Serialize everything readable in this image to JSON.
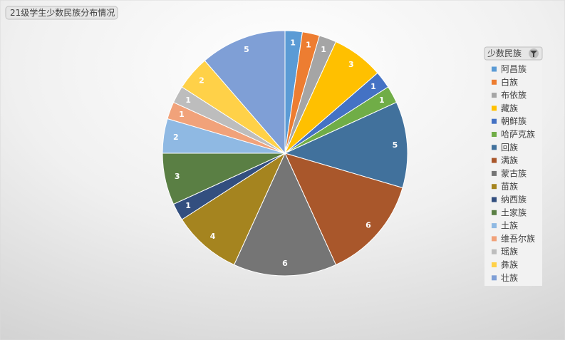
{
  "chart_data": {
    "type": "pie",
    "title": "21级学生少数民族分布情况",
    "legend_title": "少数民族",
    "categories": [
      "阿昌族",
      "白族",
      "布依族",
      "藏族",
      "朝鲜族",
      "哈萨克族",
      "回族",
      "满族",
      "蒙古族",
      "苗族",
      "纳西族",
      "土家族",
      "土族",
      "维吾尔族",
      "瑶族",
      "彝族",
      "壮族"
    ],
    "values": [
      1,
      1,
      1,
      3,
      1,
      1,
      5,
      6,
      6,
      4,
      1,
      3,
      2,
      1,
      1,
      2,
      5
    ],
    "colors": [
      "#5b9bd5",
      "#ed7d31",
      "#a5a5a5",
      "#ffc000",
      "#4472c4",
      "#70ad47",
      "#41719c",
      "#a9572b",
      "#757575",
      "#a5841f",
      "#334f7f",
      "#5a7f44",
      "#8fb9e3",
      "#f1a27a",
      "#bdbdbd",
      "#ffd148",
      "#7f9fd6"
    ],
    "legend_position": "right"
  }
}
